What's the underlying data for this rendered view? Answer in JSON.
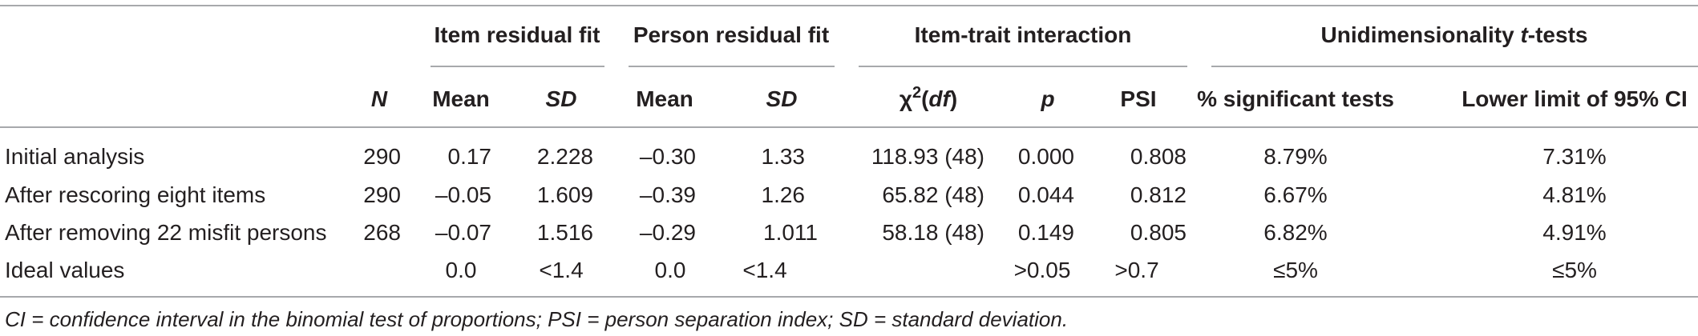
{
  "group_headers": {
    "item_residual_fit": "Item residual fit",
    "person_residual_fit": "Person residual fit",
    "item_trait_interaction": "Item-trait interaction",
    "unidimensionality": {
      "main": "Unidimensionality ",
      "italic": "t",
      "rest": "-tests"
    }
  },
  "column_headers": {
    "n": "N",
    "item_mean": "Mean",
    "item_sd": "SD",
    "person_mean": "Mean",
    "person_sd": "SD",
    "chi_chi": "χ",
    "chi_sup": "2",
    "chi_open": "(",
    "chi_df": "df",
    "chi_close": ")",
    "p": "p",
    "psi": "PSI",
    "pct_sig": "% significant tests",
    "lower_limit": "Lower limit of 95% CI"
  },
  "rows": [
    {
      "label": "Initial analysis",
      "n": "290",
      "item_mean": "0.17",
      "item_sd": "2.228",
      "person_mean": "–0.30",
      "person_sd": "1.33",
      "chi": "118.93 (48)",
      "p": "0.000",
      "psi": "0.808",
      "pct_sig": "8.79%",
      "lower_limit": "7.31%"
    },
    {
      "label": "After rescoring eight items",
      "n": "290",
      "item_mean": "–0.05",
      "item_sd": "1.609",
      "person_mean": "–0.39",
      "person_sd": "1.26",
      "chi": "65.82 (48)",
      "p": "0.044",
      "psi": "0.812",
      "pct_sig": "6.67%",
      "lower_limit": "4.81%"
    },
    {
      "label": "After removing 22 misfit persons",
      "n": "268",
      "item_mean": "–0.07",
      "item_sd": "1.516",
      "person_mean": "–0.29",
      "person_sd": "1.011",
      "chi": "58.18 (48)",
      "p": "0.149",
      "psi": "0.805",
      "pct_sig": "6.82%",
      "lower_limit": "4.91%"
    },
    {
      "label": "Ideal values",
      "n": "",
      "item_mean": "0.0",
      "item_sd": "<1.4",
      "person_mean": "0.0",
      "person_sd": "<1.4",
      "chi": "",
      "p": ">0.05",
      "psi": ">0.7",
      "pct_sig": "≤5%",
      "lower_limit": "≤5%"
    }
  ],
  "footnote": "CI = confidence interval in the binomial test of proportions; PSI = person separation index; SD = standard deviation."
}
